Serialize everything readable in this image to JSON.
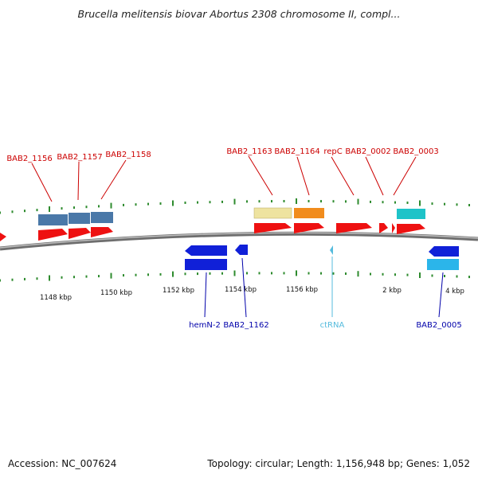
{
  "title": "Brucella melitensis biovar Abortus 2308 chromosome II, compl...",
  "footer": {
    "accession": "Accession: NC_007624",
    "summary": "Topology: circular; Length: 1,156,948 bp; Genes: 1,052"
  },
  "colors": {
    "backbone": "#888888",
    "tick": "#2e8b2e",
    "cds": "#ee1111",
    "gene_fwd_steel": "#4a78a8",
    "gene_tan": "#eee3a0",
    "gene_orange": "#f18c1d",
    "gene_cyan": "#1ec3c8",
    "cds_rev": "#1020d8",
    "gene_rev_light": "#2bb5ea",
    "label_fwd": "#cc0000",
    "label_rev": "#0000aa",
    "label_rna": "#55bbdd"
  },
  "axis_labels": [
    "1148 kbp",
    "1150 kbp",
    "1152 kbp",
    "1154 kbp",
    "1156 kbp",
    "2 kbp",
    "4 kbp"
  ],
  "labels_top": [
    "BAB2_1156",
    "BAB2_1157",
    "BAB2_1158",
    "BAB2_1163",
    "BAB2_1164",
    "repC",
    "BAB2_0002",
    "BAB2_0003"
  ],
  "labels_bottom": [
    "hemN-2",
    "BAB2_1162",
    "ctRNA",
    "BAB2_0005"
  ]
}
